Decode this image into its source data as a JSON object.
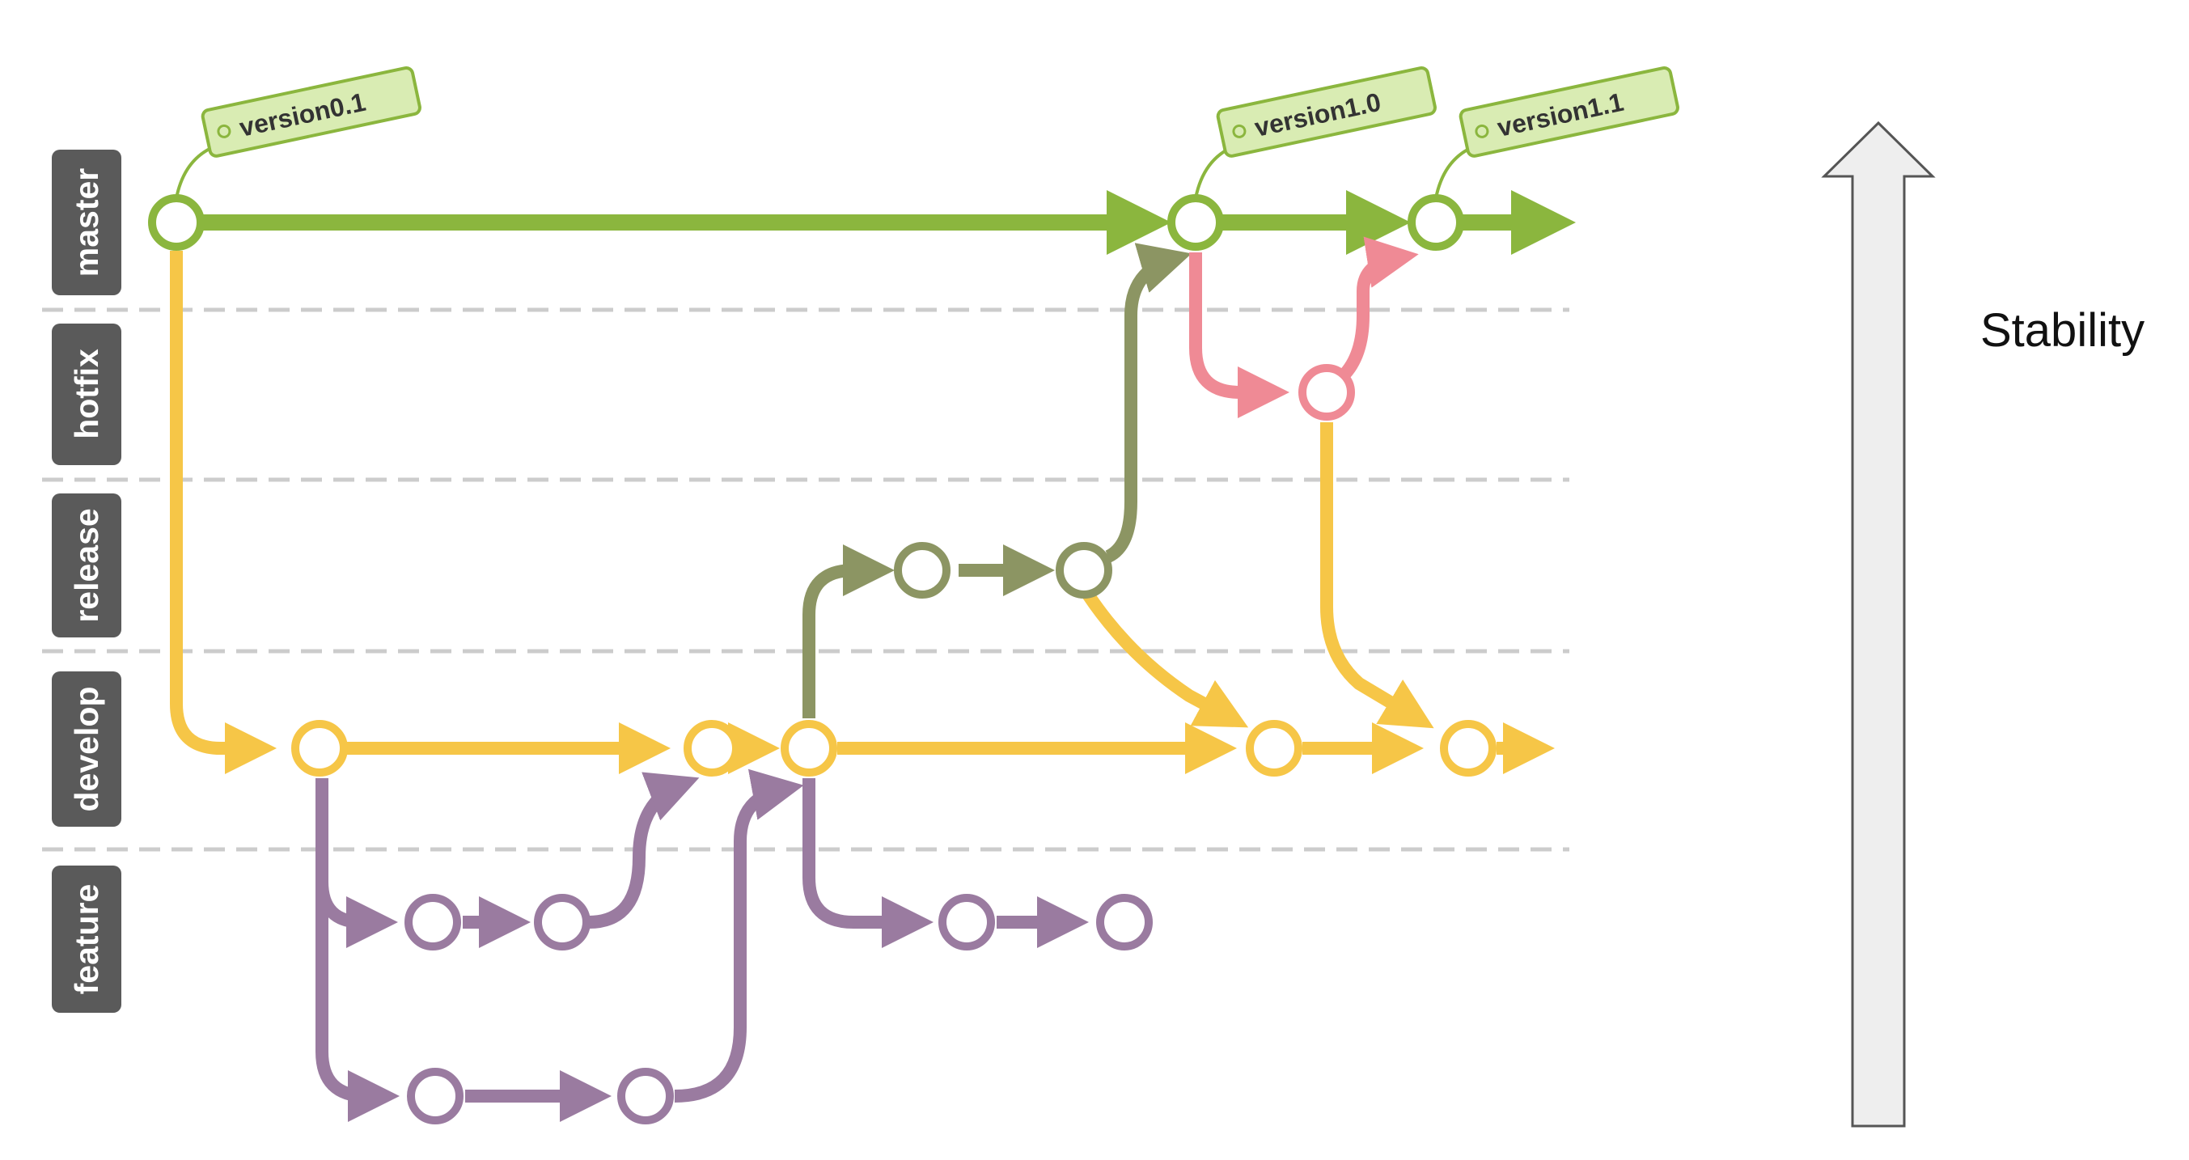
{
  "lanes": [
    {
      "key": "master",
      "label": "master",
      "color": "#8bb63e"
    },
    {
      "key": "hotfix",
      "label": "hotfix",
      "color": "#ef8a95"
    },
    {
      "key": "release",
      "label": "release",
      "color": "#8c9563"
    },
    {
      "key": "develop",
      "label": "develop",
      "color": "#f6c647"
    },
    {
      "key": "feature",
      "label": "feature",
      "color": "#9a7ba0"
    }
  ],
  "tags": [
    {
      "label": "version0.1",
      "commit": "m1"
    },
    {
      "label": "version1.0",
      "commit": "m2"
    },
    {
      "label": "version1.1",
      "commit": "m3"
    }
  ],
  "stability": {
    "label": "Stability"
  },
  "colors": {
    "master": "#8bb63e",
    "hotfix": "#ef8a95",
    "release": "#8c9563",
    "develop": "#f6c647",
    "feature": "#9a7ba0",
    "lane_label_bg": "#5a5a5a",
    "divider": "#cccccc",
    "tag_fill": "#d9ecb3",
    "tag_stroke": "#8bb63e",
    "arrow_fill": "#eeeeee",
    "arrow_stroke": "#555555"
  },
  "icons": {
    "stability_arrow": "up-arrow-icon",
    "commit": "commit-circle-icon",
    "tag": "tag-icon"
  }
}
